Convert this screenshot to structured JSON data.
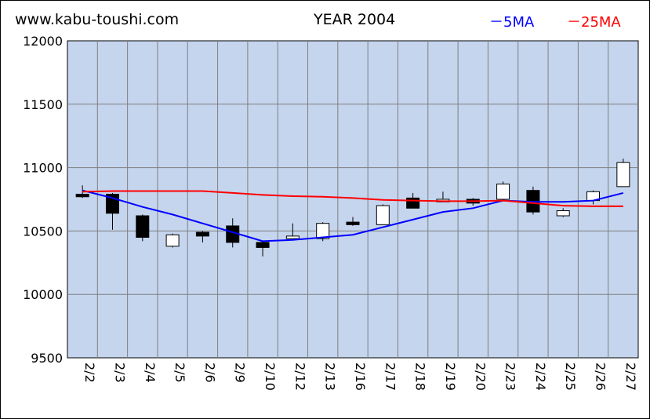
{
  "header": {
    "site": "www.kabu-toushi.com",
    "title": "YEAR 2004"
  },
  "chart_data": {
    "type": "candlestick",
    "title": "YEAR 2004",
    "ylim": [
      9500,
      12000
    ],
    "yticks": [
      9500,
      10000,
      10500,
      11000,
      11500,
      12000
    ],
    "grid": true,
    "legend_position": "top-right",
    "colors": {
      "plot_bg": "#c5d5ee",
      "ma5": "#0000ff",
      "ma25": "#ff0000",
      "up_body": "#ffffff",
      "down_body": "#000000"
    },
    "categories": [
      "2/2",
      "2/3",
      "2/4",
      "2/5",
      "2/6",
      "2/9",
      "2/10",
      "2/12",
      "2/13",
      "2/16",
      "2/17",
      "2/18",
      "2/19",
      "2/20",
      "2/23",
      "2/24",
      "2/25",
      "2/26",
      "2/27"
    ],
    "candles": [
      {
        "open": 10790,
        "close": 10770,
        "high": 10860,
        "low": 10760
      },
      {
        "open": 10790,
        "close": 10640,
        "high": 10800,
        "low": 10510
      },
      {
        "open": 10620,
        "close": 10450,
        "high": 10630,
        "low": 10420
      },
      {
        "open": 10380,
        "close": 10470,
        "high": 10480,
        "low": 10370
      },
      {
        "open": 10490,
        "close": 10460,
        "high": 10500,
        "low": 10410
      },
      {
        "open": 10540,
        "close": 10410,
        "high": 10600,
        "low": 10370
      },
      {
        "open": 10410,
        "close": 10370,
        "high": 10420,
        "low": 10300
      },
      {
        "open": 10440,
        "close": 10460,
        "high": 10560,
        "low": 10440
      },
      {
        "open": 10440,
        "close": 10560,
        "high": 10570,
        "low": 10420
      },
      {
        "open": 10570,
        "close": 10550,
        "high": 10610,
        "low": 10540
      },
      {
        "open": 10550,
        "close": 10700,
        "high": 10710,
        "low": 10550
      },
      {
        "open": 10760,
        "close": 10680,
        "high": 10800,
        "low": 10680
      },
      {
        "open": 10730,
        "close": 10750,
        "high": 10810,
        "low": 10730
      },
      {
        "open": 10750,
        "close": 10720,
        "high": 10760,
        "low": 10700
      },
      {
        "open": 10750,
        "close": 10870,
        "high": 10890,
        "low": 10740
      },
      {
        "open": 10820,
        "close": 10650,
        "high": 10850,
        "low": 10630
      },
      {
        "open": 10620,
        "close": 10660,
        "high": 10680,
        "low": 10610
      },
      {
        "open": 10740,
        "close": 10810,
        "high": 10820,
        "low": 10710
      },
      {
        "open": 10850,
        "close": 11040,
        "high": 11070,
        "low": 10850
      }
    ],
    "series": [
      {
        "name": "5MA",
        "values": [
          10820,
          10760,
          10690,
          10630,
          10560,
          10490,
          10420,
          10430,
          10450,
          10470,
          10530,
          10590,
          10650,
          10680,
          10740,
          10730,
          10730,
          10740,
          10800
        ]
      },
      {
        "name": "25MA",
        "values": [
          10810,
          10815,
          10815,
          10815,
          10815,
          10800,
          10785,
          10775,
          10770,
          10760,
          10745,
          10740,
          10735,
          10735,
          10740,
          10720,
          10700,
          10695,
          10695
        ]
      }
    ]
  }
}
